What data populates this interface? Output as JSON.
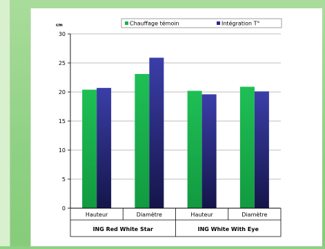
{
  "chart_data": {
    "type": "bar",
    "ylabel": "cm",
    "ylim": [
      0,
      30
    ],
    "yticks": [
      0,
      5,
      10,
      15,
      20,
      25,
      30
    ],
    "grid": true,
    "legend_position": "top",
    "categories": [
      "Hauteur",
      "Diamètre",
      "Hauteur",
      "Diamètre"
    ],
    "groups": [
      {
        "label": "ING Red White Star",
        "categories": [
          "Hauteur",
          "Diamètre"
        ]
      },
      {
        "label": "ING White With Eye",
        "categories": [
          "Hauteur",
          "Diamètre"
        ]
      }
    ],
    "series": [
      {
        "name": "Chauffage témoin",
        "color": "#1bb14c",
        "values": [
          20.4,
          23.1,
          20.2,
          20.9
        ]
      },
      {
        "name": "Intégration T°",
        "color": "#2a2b86",
        "values": [
          20.7,
          25.9,
          19.6,
          20.1
        ]
      }
    ]
  }
}
